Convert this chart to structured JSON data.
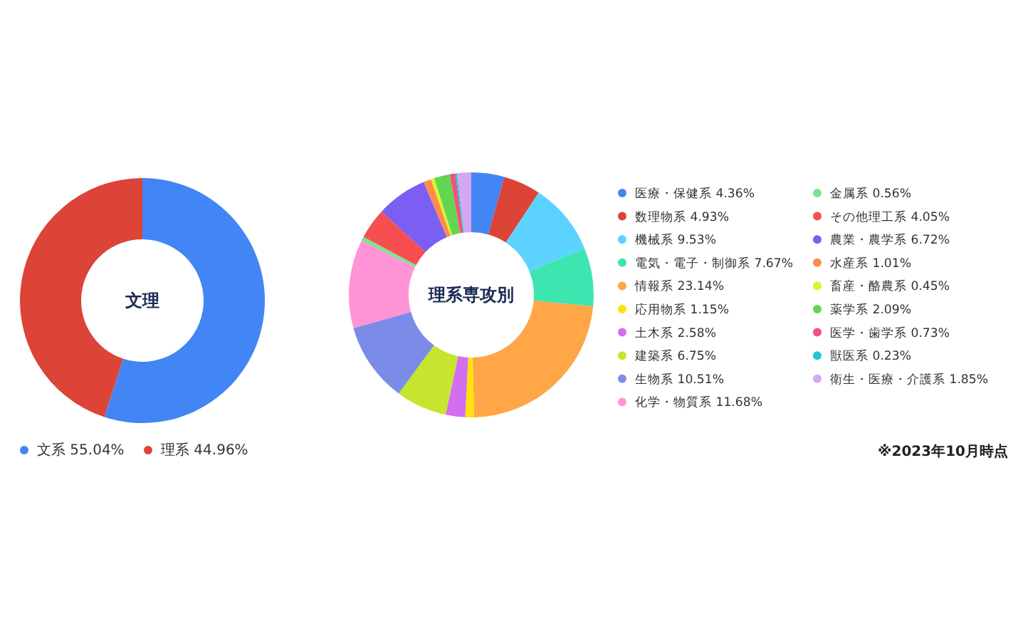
{
  "chart_data": [
    {
      "type": "donut",
      "title": "文理",
      "categories": [
        "文系",
        "理系"
      ],
      "values": [
        55.04,
        44.96
      ],
      "colors": [
        "#4285f4",
        "#db4437"
      ],
      "value_labels": [
        "55.04%",
        "44.96%"
      ],
      "legend": "bottom"
    },
    {
      "type": "donut",
      "title": "理系専攻別",
      "categories": [
        "医療・保健系",
        "数理物系",
        "機械系",
        "電気・電子・制御系",
        "情報系",
        "応用物系",
        "土木系",
        "建築系",
        "生物系",
        "化学・物質系",
        "金属系",
        "その他理工系",
        "農業・農学系",
        "水産系",
        "畜産・酪農系",
        "薬学系",
        "医学・歯学系",
        "獣医系",
        "衛生・医療・介護系"
      ],
      "values": [
        4.36,
        4.93,
        9.53,
        7.67,
        23.14,
        1.15,
        2.58,
        6.75,
        10.51,
        11.68,
        0.56,
        4.05,
        6.72,
        1.01,
        0.45,
        2.09,
        0.73,
        0.23,
        1.85
      ],
      "colors": [
        "#4285f4",
        "#db4437",
        "#5cd3ff",
        "#3de6b0",
        "#ffa646",
        "#ffe30a",
        "#d36ef0",
        "#c5e52e",
        "#7b8ce8",
        "#ff94d6",
        "#7ae58e",
        "#f74f50",
        "#7b5ef2",
        "#ff8a4a",
        "#dff22e",
        "#62d651",
        "#f5507a",
        "#22c5d8",
        "#d4a8f0"
      ],
      "value_labels": [
        "4.36%",
        "4.93%",
        "9.53%",
        "7.67%",
        "23.14%",
        "1.15%",
        "2.58%",
        "6.75%",
        "10.51%",
        "11.68%",
        "0.56%",
        "4.05%",
        "6.72%",
        "1.01%",
        "0.45%",
        "2.09%",
        "0.73%",
        "0.23%",
        "1.85%"
      ],
      "legend": "right",
      "annotations": [
        "※2023年10月時点"
      ]
    }
  ]
}
